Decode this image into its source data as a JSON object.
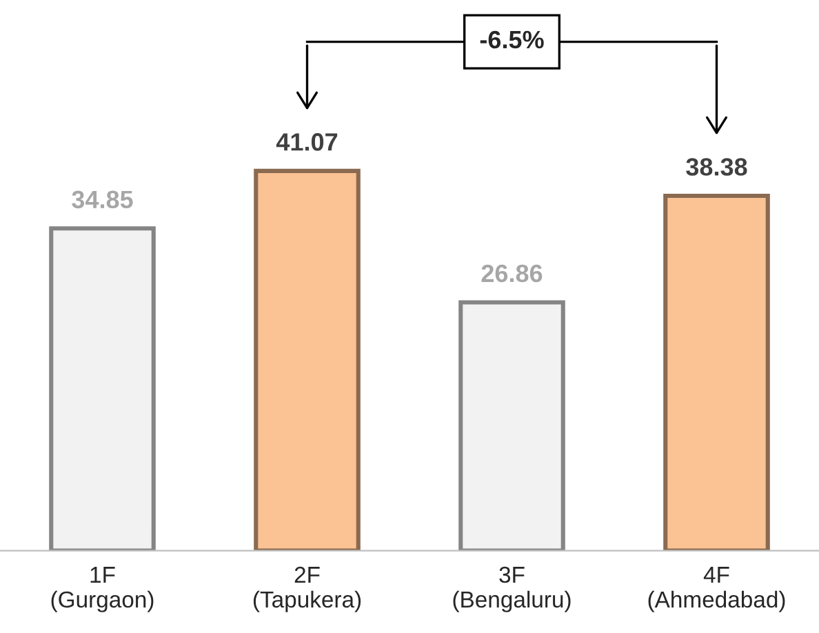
{
  "chart_data": {
    "type": "bar",
    "categories": [
      "1F\n(Gurgaon)",
      "2F\n(Tapukera)",
      "3F\n(Bengaluru)",
      "4F\n(Ahmedabad)"
    ],
    "values": [
      34.85,
      41.07,
      26.86,
      38.38
    ],
    "colors": [
      "#f2f2f2",
      "#fbc294",
      "#f2f2f2",
      "#fbc294"
    ],
    "data_labels": true,
    "annotations": [
      "-6.5%"
    ],
    "grid": false,
    "legend": false
  }
}
